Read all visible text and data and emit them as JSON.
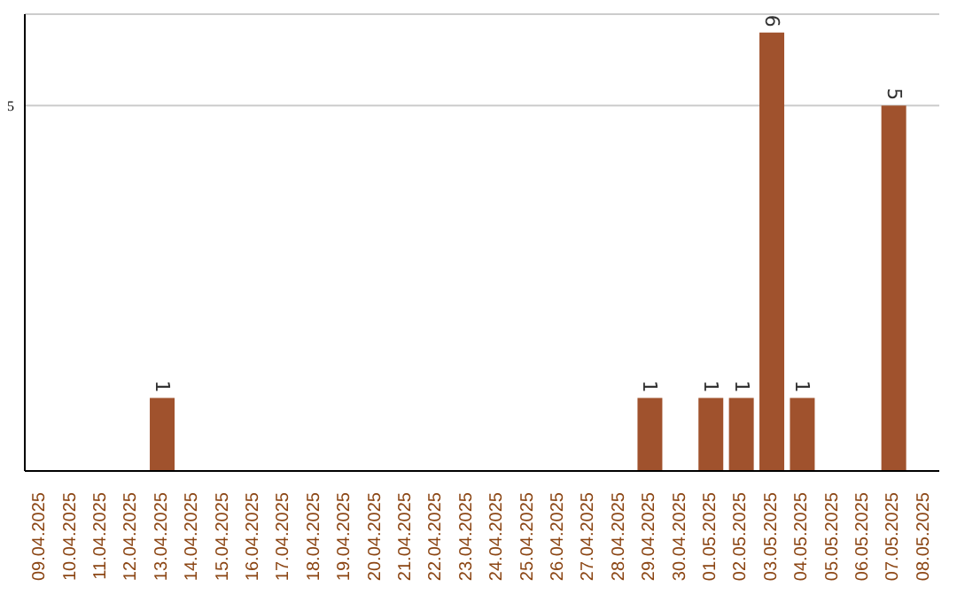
{
  "chart_data": {
    "type": "bar",
    "categories": [
      "09.04.2025",
      "10.04.2025",
      "11.04.2025",
      "12.04.2025",
      "13.04.2025",
      "14.04.2025",
      "15.04.2025",
      "16.04.2025",
      "17.04.2025",
      "18.04.2025",
      "19.04.2025",
      "20.04.2025",
      "21.04.2025",
      "22.04.2025",
      "23.04.2025",
      "24.04.2025",
      "25.04.2025",
      "26.04.2025",
      "27.04.2025",
      "28.04.2025",
      "29.04.2025",
      "30.04.2025",
      "01.05.2025",
      "02.05.2025",
      "03.05.2025",
      "04.05.2025",
      "05.05.2025",
      "06.05.2025",
      "07.05.2025",
      "08.05.2025"
    ],
    "values": [
      0,
      0,
      0,
      0,
      1,
      0,
      0,
      0,
      0,
      0,
      0,
      0,
      0,
      0,
      0,
      0,
      0,
      0,
      0,
      0,
      1,
      0,
      1,
      1,
      6,
      1,
      0,
      0,
      5,
      0
    ],
    "value_labels": [
      null,
      null,
      null,
      null,
      "1",
      null,
      null,
      null,
      null,
      null,
      null,
      null,
      null,
      null,
      null,
      null,
      null,
      null,
      null,
      null,
      "1",
      null,
      "1",
      "1",
      "6",
      "1",
      null,
      null,
      "5",
      null
    ],
    "color": "#a0522d",
    "ylim": [
      0,
      6.25
    ],
    "yticks": [
      5
    ],
    "grid": "y",
    "legend": false
  }
}
